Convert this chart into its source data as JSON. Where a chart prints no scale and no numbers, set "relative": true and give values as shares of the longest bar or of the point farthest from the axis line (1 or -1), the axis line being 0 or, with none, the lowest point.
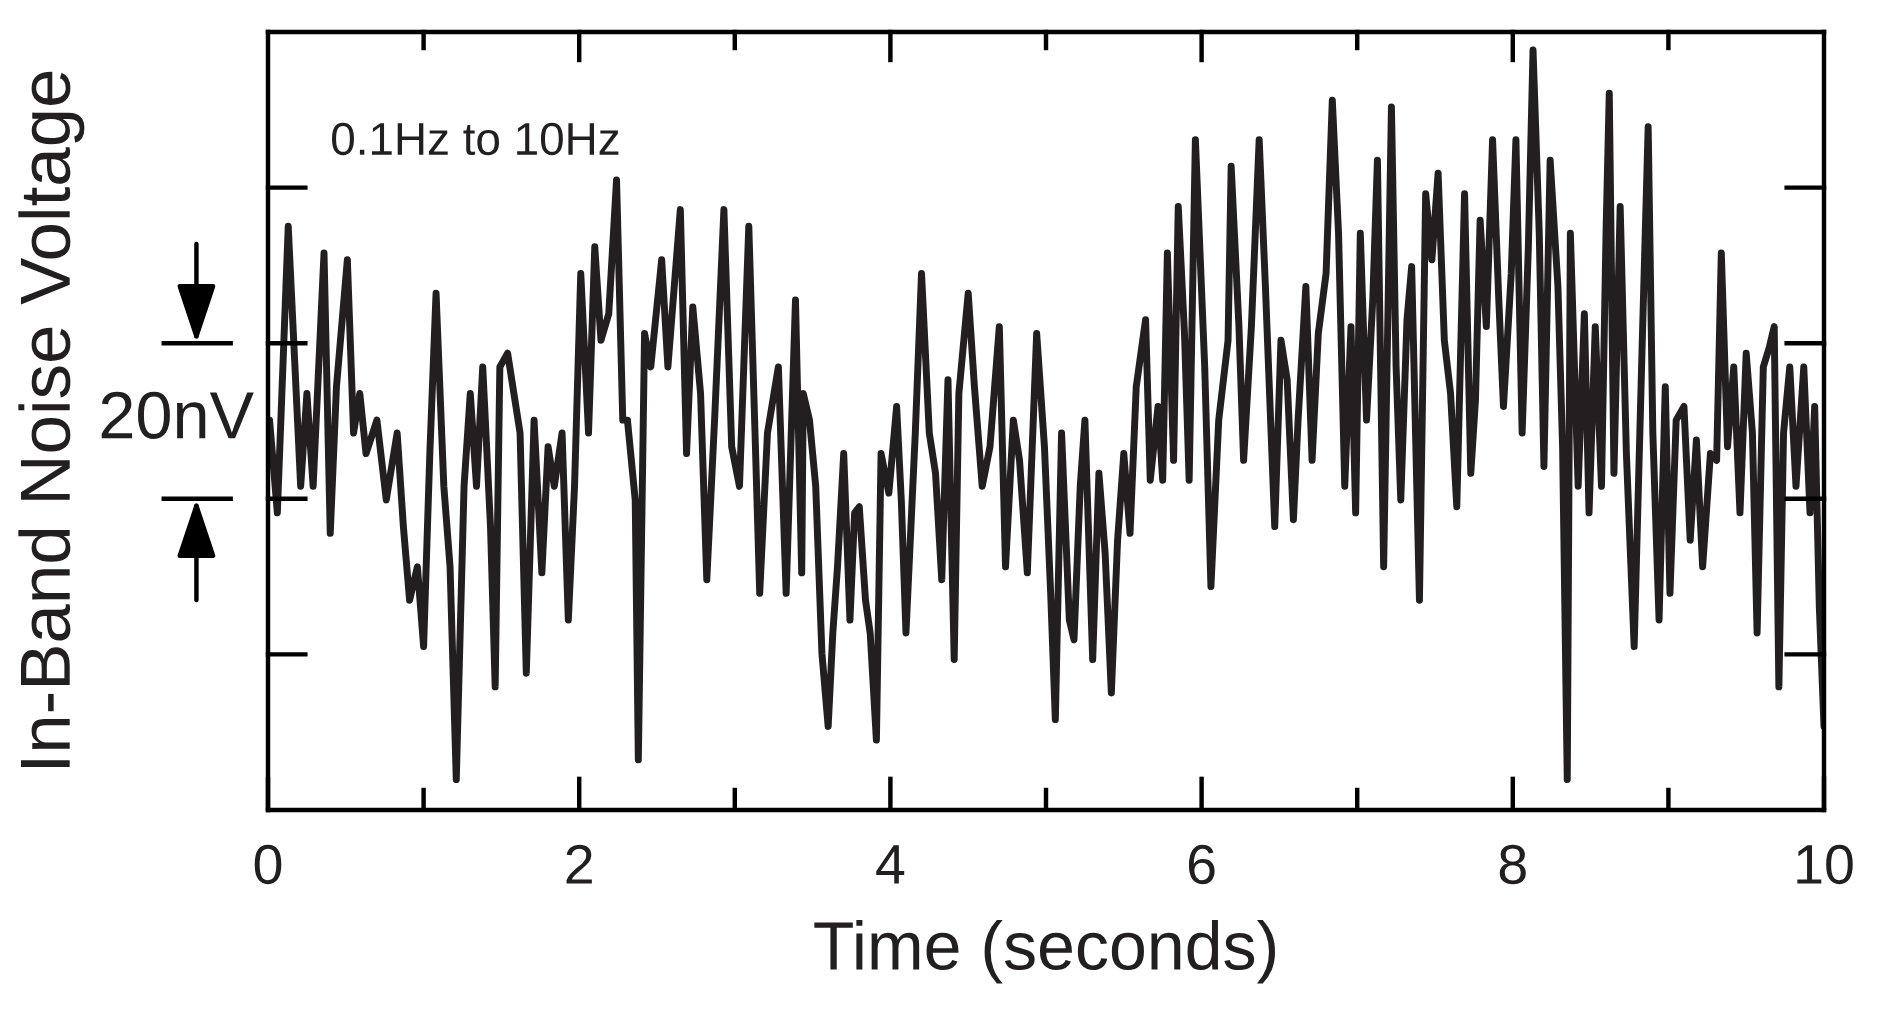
{
  "chart_data": {
    "type": "line",
    "xlabel": "Time (seconds)",
    "ylabel": "In-Band Noise Voltage",
    "annotations": [
      "0.1Hz to 10Hz",
      "20nV"
    ],
    "relative": true,
    "xlim": [
      0,
      10
    ],
    "xticks": [
      0,
      {
        "value": 1,
        "label": null
      },
      2,
      {
        "value": 3,
        "label": null
      },
      4,
      {
        "value": 5,
        "label": null
      },
      6,
      {
        "value": 7,
        "label": null
      },
      8,
      {
        "value": 9,
        "label": null
      },
      10
    ],
    "color": "#231f20",
    "grid": false,
    "marker": "none",
    "line_style": "solid",
    "x": [
      0.01,
      0.06,
      0.13,
      0.21,
      0.25,
      0.29,
      0.36,
      0.4,
      0.44,
      0.51,
      0.55,
      0.59,
      0.63,
      0.7,
      0.76,
      0.83,
      0.87,
      0.91,
      0.96,
      1.0,
      1.04,
      1.08,
      1.13,
      1.17,
      1.21,
      1.26,
      1.3,
      1.34,
      1.38,
      1.43,
      1.46,
      1.49,
      1.54,
      1.62,
      1.66,
      1.71,
      1.76,
      1.8,
      1.84,
      1.89,
      1.93,
      1.97,
      2.01,
      2.06,
      2.1,
      2.14,
      2.19,
      2.24,
      2.28,
      2.31,
      2.36,
      2.38,
      2.42,
      2.46,
      2.53,
      2.57,
      2.65,
      2.69,
      2.73,
      2.78,
      2.82,
      2.87,
      2.93,
      2.98,
      3.03,
      3.09,
      3.13,
      3.16,
      3.21,
      3.28,
      3.33,
      3.39,
      3.43,
      3.44,
      3.48,
      3.52,
      3.56,
      3.6,
      3.63,
      3.66,
      3.7,
      3.74,
      3.77,
      3.8,
      3.84,
      3.87,
      3.91,
      3.94,
      3.99,
      4.04,
      4.07,
      4.1,
      4.16,
      4.2,
      4.25,
      4.29,
      4.33,
      4.37,
      4.41,
      4.44,
      4.5,
      4.54,
      4.59,
      4.64,
      4.7,
      4.74,
      4.79,
      4.83,
      4.88,
      4.94,
      4.99,
      5.03,
      5.06,
      5.1,
      5.15,
      5.18,
      5.22,
      5.25,
      5.3,
      5.34,
      5.38,
      5.42,
      5.46,
      5.5,
      5.54,
      5.58,
      5.64,
      5.67,
      5.72,
      5.75,
      5.78,
      5.82,
      5.85,
      5.89,
      5.92,
      5.96,
      6.02,
      6.06,
      6.11,
      6.17,
      6.19,
      6.24,
      6.27,
      6.32,
      6.37,
      6.41,
      6.47,
      6.51,
      6.55,
      6.59,
      6.62,
      6.67,
      6.71,
      6.75,
      6.8,
      6.84,
      6.88,
      6.92,
      6.96,
      6.99,
      7.02,
      7.06,
      7.1,
      7.13,
      7.17,
      7.22,
      7.25,
      7.28,
      7.32,
      7.35,
      7.4,
      7.44,
      7.48,
      7.52,
      7.56,
      7.6,
      7.64,
      7.69,
      7.73,
      7.76,
      7.79,
      7.83,
      7.87,
      7.91,
      7.94,
      7.99,
      8.02,
      8.06,
      8.1,
      8.13,
      8.17,
      8.2,
      8.24,
      8.29,
      8.32,
      8.35,
      8.37,
      8.42,
      8.46,
      8.49,
      8.53,
      8.57,
      8.6,
      8.62,
      8.65,
      8.69,
      8.73,
      8.78,
      8.83,
      8.87,
      8.9,
      8.94,
      8.98,
      9.01,
      9.05,
      9.1,
      9.14,
      9.18,
      9.22,
      9.27,
      9.31,
      9.34,
      9.38,
      9.42,
      9.46,
      9.5,
      9.54,
      9.57,
      9.61,
      9.65,
      9.68,
      9.71,
      9.74,
      9.78,
      9.82,
      9.87,
      9.91,
      9.94,
      9.97,
      10.0
    ],
    "values": [
      0.513,
      0.391,
      0.768,
      0.426,
      0.548,
      0.426,
      0.733,
      0.364,
      0.557,
      0.724,
      0.496,
      0.548,
      0.469,
      0.513,
      0.408,
      0.496,
      0.373,
      0.276,
      0.32,
      0.215,
      0.469,
      0.68,
      0.426,
      0.32,
      0.04,
      0.426,
      0.548,
      0.426,
      0.583,
      0.373,
      0.162,
      0.583,
      0.601,
      0.496,
      0.18,
      0.513,
      0.312,
      0.478,
      0.426,
      0.496,
      0.25,
      0.426,
      0.706,
      0.496,
      0.741,
      0.618,
      0.653,
      0.829,
      0.513,
      0.513,
      0.408,
      0.066,
      0.627,
      0.583,
      0.724,
      0.583,
      0.79,
      0.469,
      0.662,
      0.548,
      0.303,
      0.513,
      0.79,
      0.478,
      0.426,
      0.768,
      0.496,
      0.285,
      0.496,
      0.583,
      0.285,
      0.671,
      0.312,
      0.548,
      0.513,
      0.426,
      0.206,
      0.11,
      0.233,
      0.32,
      0.469,
      0.25,
      0.391,
      0.399,
      0.276,
      0.233,
      0.092,
      0.469,
      0.417,
      0.531,
      0.408,
      0.233,
      0.496,
      0.706,
      0.496,
      0.443,
      0.303,
      0.566,
      0.198,
      0.548,
      0.68,
      0.557,
      0.426,
      0.478,
      0.636,
      0.32,
      0.513,
      0.46,
      0.312,
      0.627,
      0.478,
      0.285,
      0.119,
      0.496,
      0.25,
      0.224,
      0.426,
      0.513,
      0.198,
      0.443,
      0.338,
      0.154,
      0.355,
      0.469,
      0.364,
      0.557,
      0.645,
      0.434,
      0.531,
      0.434,
      0.733,
      0.46,
      0.794,
      0.627,
      0.434,
      0.882,
      0.583,
      0.294,
      0.513,
      0.618,
      0.847,
      0.636,
      0.46,
      0.636,
      0.882,
      0.689,
      0.373,
      0.618,
      0.566,
      0.382,
      0.513,
      0.689,
      0.46,
      0.627,
      0.706,
      0.934,
      0.759,
      0.426,
      0.636,
      0.391,
      0.759,
      0.513,
      0.671,
      0.855,
      0.32,
      0.925,
      0.583,
      0.408,
      0.645,
      0.715,
      0.276,
      0.811,
      0.724,
      0.838,
      0.618,
      0.548,
      0.399,
      0.811,
      0.443,
      0.539,
      0.776,
      0.636,
      0.882,
      0.671,
      0.531,
      0.706,
      0.882,
      0.496,
      0.741,
      1.0,
      0.759,
      0.452,
      0.855,
      0.689,
      0.478,
      0.04,
      0.759,
      0.426,
      0.653,
      0.391,
      0.636,
      0.426,
      0.768,
      0.943,
      0.443,
      0.794,
      0.469,
      0.215,
      0.601,
      0.899,
      0.496,
      0.25,
      0.557,
      0.285,
      0.513,
      0.531,
      0.355,
      0.487,
      0.32,
      0.469,
      0.46,
      0.733,
      0.478,
      0.583,
      0.391,
      0.601,
      0.496,
      0.233,
      0.583,
      0.61,
      0.636,
      0.162,
      0.496,
      0.583,
      0.426,
      0.583,
      0.391,
      0.531,
      0.267,
      0.11
    ]
  }
}
